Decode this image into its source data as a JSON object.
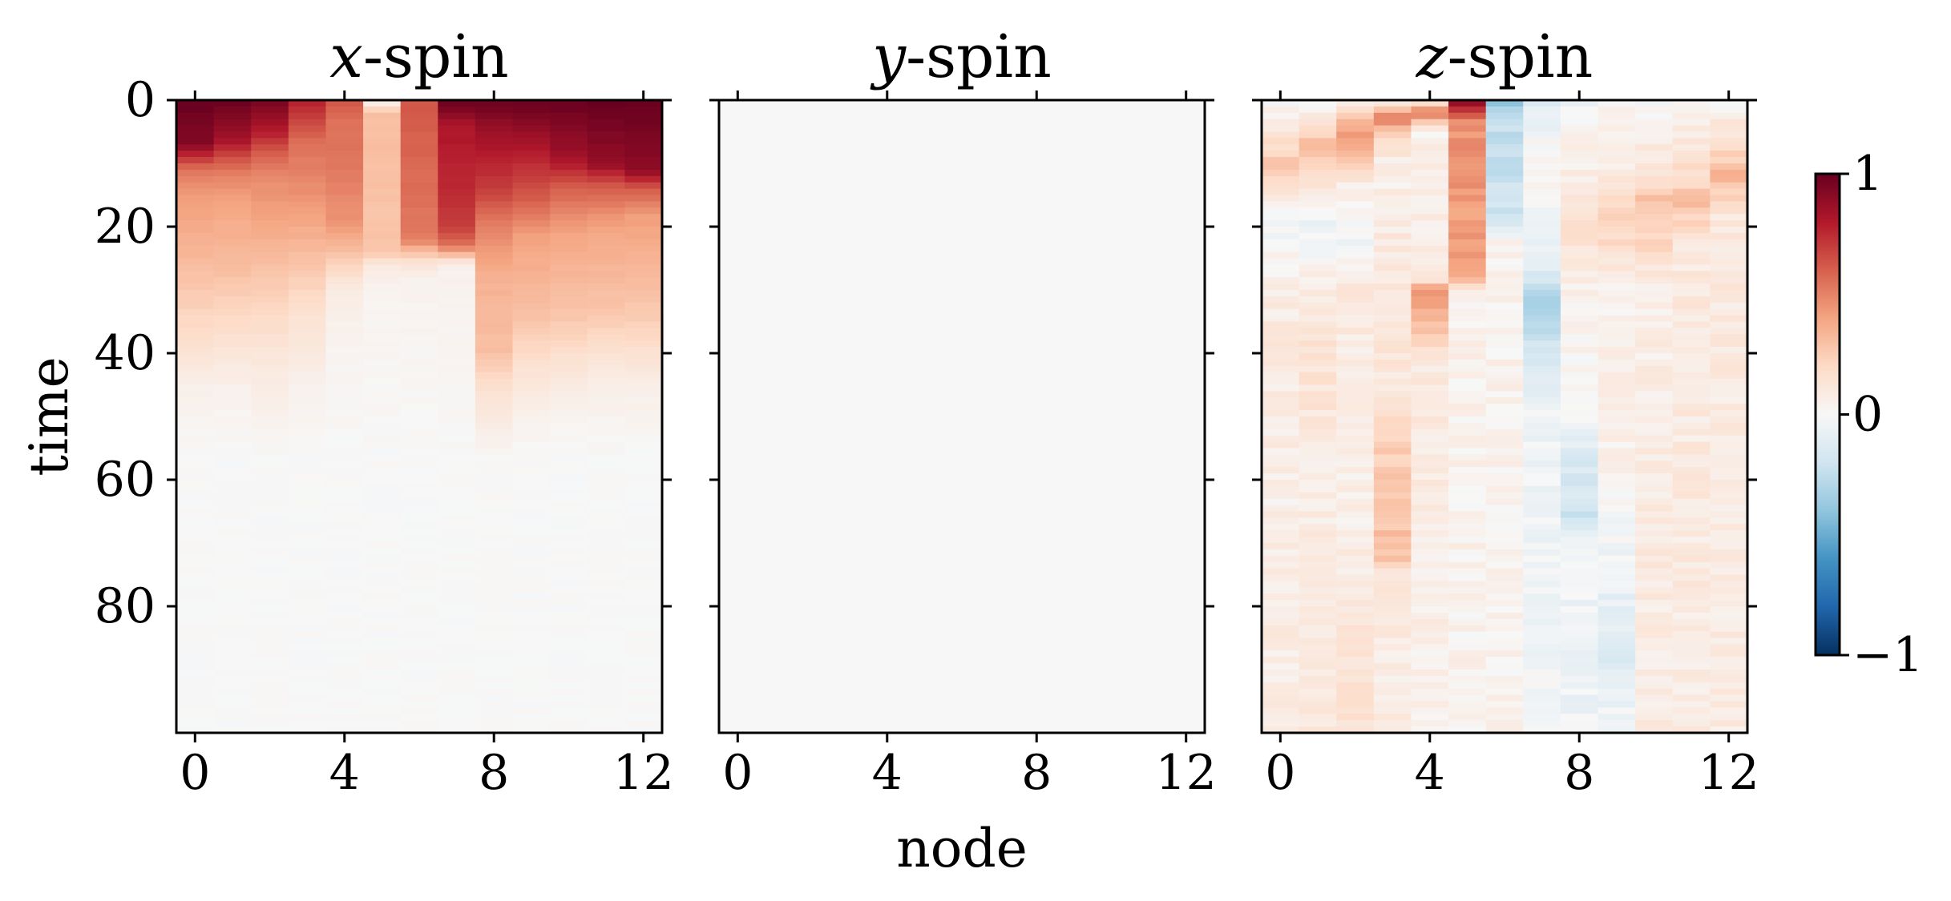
{
  "chart_data": [
    {
      "type": "heatmap",
      "title_var": "x",
      "title_suffix": "-spin",
      "xlabel": "",
      "ylabel": "time",
      "x": [
        0,
        1,
        2,
        3,
        4,
        5,
        6,
        7,
        8,
        9,
        10,
        11,
        12
      ],
      "xticks": [
        "0",
        "4",
        "8",
        "12"
      ],
      "yticks": [
        "0",
        "20",
        "40",
        "60",
        "80"
      ],
      "xlim": [
        -0.5,
        12.5
      ],
      "ylim": [
        0,
        100
      ],
      "y_inverted": true,
      "profiles": [
        [
          [
            0,
            1.0
          ],
          [
            7,
            0.92
          ],
          [
            11,
            0.55
          ],
          [
            15,
            0.42
          ],
          [
            24,
            0.34
          ],
          [
            34,
            0.22
          ],
          [
            46,
            0.05
          ],
          [
            56,
            0.0
          ],
          [
            100,
            0.0
          ]
        ],
        [
          [
            0,
            1.0
          ],
          [
            6,
            0.85
          ],
          [
            9,
            0.65
          ],
          [
            12,
            0.5
          ],
          [
            16,
            0.4
          ],
          [
            26,
            0.32
          ],
          [
            36,
            0.18
          ],
          [
            46,
            0.04
          ],
          [
            56,
            0.0
          ],
          [
            100,
            0.0
          ]
        ],
        [
          [
            0,
            0.95
          ],
          [
            5,
            0.8
          ],
          [
            8,
            0.62
          ],
          [
            12,
            0.48
          ],
          [
            20,
            0.38
          ],
          [
            30,
            0.25
          ],
          [
            42,
            0.1
          ],
          [
            53,
            0.02
          ],
          [
            56,
            0.0
          ],
          [
            100,
            0.0
          ]
        ],
        [
          [
            0,
            0.78
          ],
          [
            4,
            0.65
          ],
          [
            7,
            0.55
          ],
          [
            14,
            0.47
          ],
          [
            22,
            0.35
          ],
          [
            34,
            0.15
          ],
          [
            46,
            0.04
          ],
          [
            56,
            0.0
          ],
          [
            100,
            0.0
          ]
        ],
        [
          [
            0,
            0.62
          ],
          [
            3,
            0.56
          ],
          [
            12,
            0.52
          ],
          [
            20,
            0.44
          ],
          [
            24,
            0.3
          ],
          [
            30,
            0.08
          ],
          [
            40,
            0.03
          ],
          [
            56,
            0.0
          ],
          [
            100,
            0.0
          ]
        ],
        [
          [
            0,
            0.0
          ],
          [
            2,
            0.3
          ],
          [
            10,
            0.3
          ],
          [
            24,
            0.28
          ],
          [
            26,
            0.1
          ],
          [
            30,
            0.03
          ],
          [
            56,
            0.0
          ],
          [
            100,
            0.0
          ]
        ],
        [
          [
            0,
            0.62
          ],
          [
            10,
            0.58
          ],
          [
            22,
            0.52
          ],
          [
            25,
            0.2
          ],
          [
            28,
            0.04
          ],
          [
            56,
            0.0
          ],
          [
            100,
            0.0
          ]
        ],
        [
          [
            0,
            1.0
          ],
          [
            4,
            0.82
          ],
          [
            14,
            0.75
          ],
          [
            20,
            0.7
          ],
          [
            23,
            0.55
          ],
          [
            26,
            0.05
          ],
          [
            56,
            0.0
          ],
          [
            100,
            0.0
          ]
        ],
        [
          [
            0,
            1.0
          ],
          [
            5,
            0.85
          ],
          [
            14,
            0.7
          ],
          [
            20,
            0.5
          ],
          [
            28,
            0.35
          ],
          [
            40,
            0.3
          ],
          [
            46,
            0.15
          ],
          [
            54,
            0.05
          ],
          [
            57,
            0.0
          ],
          [
            100,
            0.0
          ]
        ],
        [
          [
            0,
            1.0
          ],
          [
            8,
            0.8
          ],
          [
            16,
            0.6
          ],
          [
            22,
            0.4
          ],
          [
            34,
            0.3
          ],
          [
            44,
            0.12
          ],
          [
            52,
            0.03
          ],
          [
            56,
            0.0
          ],
          [
            100,
            0.0
          ]
        ],
        [
          [
            0,
            1.0
          ],
          [
            9,
            0.85
          ],
          [
            14,
            0.6
          ],
          [
            22,
            0.38
          ],
          [
            34,
            0.28
          ],
          [
            44,
            0.1
          ],
          [
            52,
            0.02
          ],
          [
            56,
            0.0
          ],
          [
            100,
            0.0
          ]
        ],
        [
          [
            0,
            1.0
          ],
          [
            10,
            0.88
          ],
          [
            14,
            0.6
          ],
          [
            20,
            0.4
          ],
          [
            34,
            0.27
          ],
          [
            44,
            0.08
          ],
          [
            52,
            0.02
          ],
          [
            56,
            0.0
          ],
          [
            100,
            0.0
          ]
        ],
        [
          [
            0,
            1.0
          ],
          [
            11,
            0.9
          ],
          [
            14,
            0.62
          ],
          [
            18,
            0.42
          ],
          [
            34,
            0.26
          ],
          [
            44,
            0.08
          ],
          [
            52,
            0.02
          ],
          [
            56,
            0.0
          ],
          [
            100,
            0.0
          ]
        ]
      ],
      "noise": 0.01
    },
    {
      "type": "heatmap",
      "title_var": "y",
      "title_suffix": "-spin",
      "xlabel": "node",
      "ylabel": "",
      "x": [
        0,
        1,
        2,
        3,
        4,
        5,
        6,
        7,
        8,
        9,
        10,
        11,
        12
      ],
      "xticks": [
        "0",
        "4",
        "8",
        "12"
      ],
      "yticks": [],
      "xlim": [
        -0.5,
        12.5
      ],
      "ylim": [
        0,
        100
      ],
      "y_inverted": true,
      "profiles": [
        [
          [
            0,
            0
          ],
          [
            100,
            0
          ]
        ],
        [
          [
            0,
            0
          ],
          [
            100,
            0
          ]
        ],
        [
          [
            0,
            0
          ],
          [
            100,
            0
          ]
        ],
        [
          [
            0,
            0
          ],
          [
            100,
            0
          ]
        ],
        [
          [
            0,
            0
          ],
          [
            100,
            0
          ]
        ],
        [
          [
            0,
            0
          ],
          [
            100,
            0
          ]
        ],
        [
          [
            0,
            0
          ],
          [
            100,
            0
          ]
        ],
        [
          [
            0,
            0
          ],
          [
            100,
            0
          ]
        ],
        [
          [
            0,
            0
          ],
          [
            100,
            0
          ]
        ],
        [
          [
            0,
            0
          ],
          [
            100,
            0
          ]
        ],
        [
          [
            0,
            0
          ],
          [
            100,
            0
          ]
        ],
        [
          [
            0,
            0
          ],
          [
            100,
            0
          ]
        ],
        [
          [
            0,
            0
          ],
          [
            100,
            0
          ]
        ]
      ],
      "noise": 0.0
    },
    {
      "type": "heatmap",
      "title_var": "z",
      "title_suffix": "-spin",
      "xlabel": "",
      "ylabel": "",
      "x": [
        0,
        1,
        2,
        3,
        4,
        5,
        6,
        7,
        8,
        9,
        10,
        11,
        12
      ],
      "xticks": [
        "0",
        "4",
        "8",
        "12"
      ],
      "yticks": [],
      "xlim": [
        -0.5,
        12.5
      ],
      "ylim": [
        0,
        100
      ],
      "y_inverted": true,
      "colorbar": {
        "min": -1,
        "max": 1,
        "ticks": [
          "1",
          "0",
          "−1"
        ]
      },
      "profiles": [
        [
          [
            0,
            0.0
          ],
          [
            8,
            0.2
          ],
          [
            10,
            0.35
          ],
          [
            14,
            0.15
          ],
          [
            18,
            -0.05
          ],
          [
            30,
            0.08
          ],
          [
            40,
            0.1
          ],
          [
            60,
            0.06
          ],
          [
            100,
            0.08
          ]
        ],
        [
          [
            0,
            0.0
          ],
          [
            7,
            0.3
          ],
          [
            11,
            0.2
          ],
          [
            16,
            0.05
          ],
          [
            20,
            -0.05
          ],
          [
            30,
            0.1
          ],
          [
            40,
            0.15
          ],
          [
            60,
            0.08
          ],
          [
            100,
            0.12
          ]
        ],
        [
          [
            0,
            0.0
          ],
          [
            5,
            0.45
          ],
          [
            9,
            0.3
          ],
          [
            14,
            0.05
          ],
          [
            22,
            -0.05
          ],
          [
            30,
            0.12
          ],
          [
            40,
            0.08
          ],
          [
            60,
            0.05
          ],
          [
            100,
            0.15
          ]
        ],
        [
          [
            0,
            0.0
          ],
          [
            3,
            0.55
          ],
          [
            5,
            0.25
          ],
          [
            10,
            0.05
          ],
          [
            26,
            0.1
          ],
          [
            48,
            0.12
          ],
          [
            56,
            0.25
          ],
          [
            72,
            0.3
          ],
          [
            75,
            0.1
          ],
          [
            100,
            0.08
          ]
        ],
        [
          [
            0,
            0.0
          ],
          [
            2,
            0.55
          ],
          [
            5,
            0.05
          ],
          [
            28,
            0.08
          ],
          [
            30,
            0.45
          ],
          [
            36,
            0.3
          ],
          [
            42,
            0.1
          ],
          [
            100,
            0.05
          ]
        ],
        [
          [
            0,
            0.95
          ],
          [
            3,
            0.5
          ],
          [
            5,
            0.45
          ],
          [
            28,
            0.4
          ],
          [
            30,
            0.05
          ],
          [
            100,
            0.03
          ]
        ],
        [
          [
            0,
            -0.45
          ],
          [
            3,
            -0.25
          ],
          [
            20,
            -0.2
          ],
          [
            22,
            0.05
          ],
          [
            100,
            0.03
          ]
        ],
        [
          [
            0,
            -0.15
          ],
          [
            4,
            -0.05
          ],
          [
            10,
            0.05
          ],
          [
            26,
            -0.1
          ],
          [
            32,
            -0.3
          ],
          [
            42,
            -0.15
          ],
          [
            50,
            -0.05
          ],
          [
            100,
            -0.02
          ]
        ],
        [
          [
            0,
            -0.05
          ],
          [
            5,
            0.02
          ],
          [
            20,
            0.15
          ],
          [
            30,
            0.05
          ],
          [
            50,
            0.0
          ],
          [
            56,
            -0.15
          ],
          [
            66,
            -0.2
          ],
          [
            70,
            -0.05
          ],
          [
            100,
            -0.05
          ]
        ],
        [
          [
            0,
            0.0
          ],
          [
            12,
            0.1
          ],
          [
            18,
            0.25
          ],
          [
            30,
            0.05
          ],
          [
            50,
            0.08
          ],
          [
            84,
            -0.1
          ],
          [
            88,
            -0.15
          ],
          [
            94,
            -0.05
          ],
          [
            100,
            -0.05
          ]
        ],
        [
          [
            0,
            0.0
          ],
          [
            12,
            0.15
          ],
          [
            16,
            0.3
          ],
          [
            20,
            0.25
          ],
          [
            30,
            0.05
          ],
          [
            60,
            0.1
          ],
          [
            100,
            0.08
          ]
        ],
        [
          [
            0,
            0.0
          ],
          [
            10,
            0.15
          ],
          [
            16,
            0.3
          ],
          [
            24,
            0.1
          ],
          [
            40,
            0.1
          ],
          [
            100,
            0.08
          ]
        ],
        [
          [
            0,
            0.0
          ],
          [
            8,
            0.2
          ],
          [
            12,
            0.35
          ],
          [
            18,
            0.1
          ],
          [
            100,
            0.08
          ]
        ]
      ],
      "noise": 0.05
    }
  ]
}
